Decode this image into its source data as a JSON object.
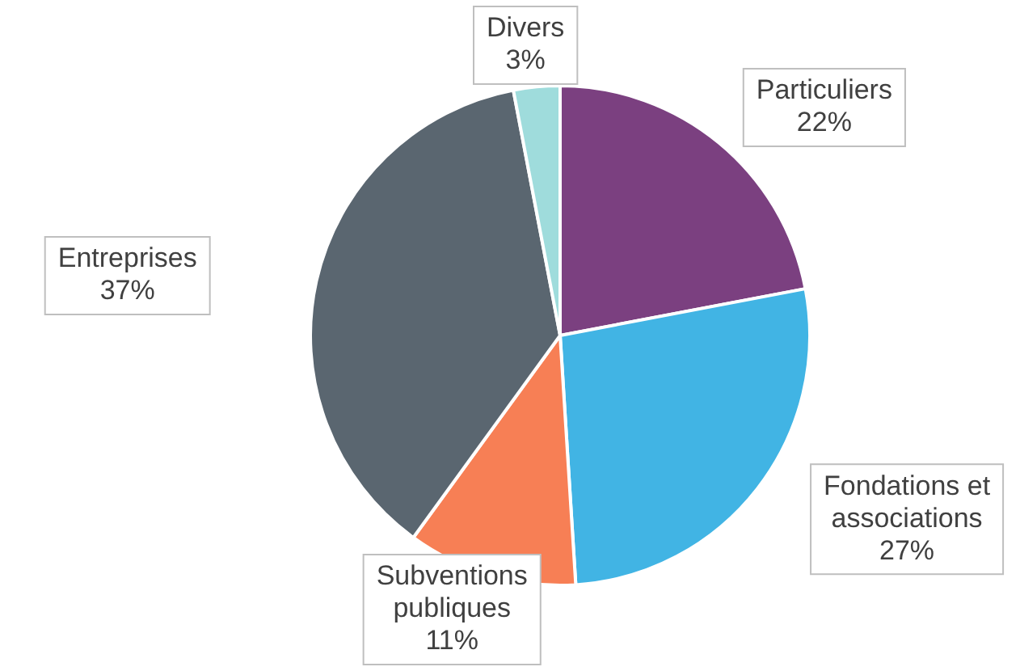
{
  "chart_data": {
    "type": "pie",
    "categories": [
      "Particuliers",
      "Fondations et associations",
      "Subventions publiques",
      "Entreprises",
      "Divers"
    ],
    "values": [
      22,
      27,
      11,
      37,
      3
    ],
    "colors": [
      "#7b4080",
      "#41b4e4",
      "#f77f55",
      "#5a6670",
      "#9fdcdc"
    ],
    "value_labels": [
      "22%",
      "27%",
      "11%",
      "37%",
      "3%"
    ],
    "legend": false
  }
}
